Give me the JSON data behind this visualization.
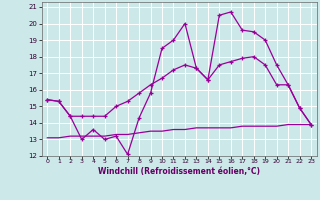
{
  "xlabel": "Windchill (Refroidissement éolien,°C)",
  "bg_color": "#cce8e8",
  "grid_color": "#ffffff",
  "line_color": "#990099",
  "xlim": [
    -0.5,
    23.5
  ],
  "ylim": [
    12,
    21.3
  ],
  "xticks": [
    0,
    1,
    2,
    3,
    4,
    5,
    6,
    7,
    8,
    9,
    10,
    11,
    12,
    13,
    14,
    15,
    16,
    17,
    18,
    19,
    20,
    21,
    22,
    23
  ],
  "yticks": [
    12,
    13,
    14,
    15,
    16,
    17,
    18,
    19,
    20,
    21
  ],
  "line1_x": [
    0,
    1,
    2,
    3,
    4,
    5,
    6,
    7,
    8,
    9,
    10,
    11,
    12,
    13,
    14,
    15,
    16,
    17,
    18,
    19,
    20,
    21,
    22,
    23
  ],
  "line1_y": [
    15.4,
    15.3,
    14.4,
    13.0,
    13.6,
    13.0,
    13.2,
    12.1,
    14.3,
    15.8,
    18.5,
    19.0,
    20.0,
    17.3,
    16.6,
    20.5,
    20.7,
    19.6,
    19.5,
    19.0,
    17.5,
    16.3,
    14.9,
    13.9
  ],
  "line2_x": [
    0,
    1,
    2,
    3,
    4,
    5,
    6,
    7,
    8,
    9,
    10,
    11,
    12,
    13,
    14,
    15,
    16,
    17,
    18,
    19,
    20,
    21,
    22,
    23
  ],
  "line2_y": [
    15.4,
    15.3,
    14.4,
    14.4,
    14.4,
    14.4,
    15.0,
    15.3,
    15.8,
    16.3,
    16.7,
    17.2,
    17.5,
    17.3,
    16.6,
    17.5,
    17.7,
    17.9,
    18.0,
    17.5,
    16.3,
    16.3,
    14.9,
    13.9
  ],
  "line3_x": [
    0,
    1,
    2,
    3,
    4,
    5,
    6,
    7,
    8,
    9,
    10,
    11,
    12,
    13,
    14,
    15,
    16,
    17,
    18,
    19,
    20,
    21,
    22,
    23
  ],
  "line3_y": [
    13.1,
    13.1,
    13.2,
    13.2,
    13.2,
    13.2,
    13.3,
    13.3,
    13.4,
    13.5,
    13.5,
    13.6,
    13.6,
    13.7,
    13.7,
    13.7,
    13.7,
    13.8,
    13.8,
    13.8,
    13.8,
    13.9,
    13.9,
    13.9
  ]
}
